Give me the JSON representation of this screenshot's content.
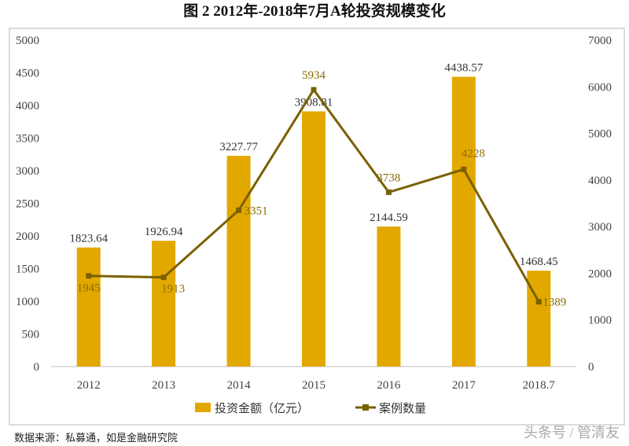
{
  "chart_data": {
    "type": "bar+line",
    "title": "图 2    2012年-2018年7月A轮投资规模变化",
    "categories": [
      "2012",
      "2013",
      "2014",
      "2015",
      "2016",
      "2017",
      "2018.7"
    ],
    "series": [
      {
        "name": "投资金额（亿元）",
        "type": "bar",
        "axis": "left",
        "color": "#E2A800",
        "values": [
          1823.64,
          1926.94,
          3227.77,
          3908.81,
          2144.59,
          4438.57,
          1468.45
        ],
        "labels": [
          "1823.64",
          "1926.94",
          "3227.77",
          "3908.81",
          "2144.59",
          "4438.57",
          "1468.45"
        ]
      },
      {
        "name": "案例数量",
        "type": "line",
        "axis": "right",
        "color": "#7A6000",
        "values": [
          1945,
          1913,
          3351,
          5934,
          3738,
          4228,
          1389
        ],
        "labels": [
          "1945",
          "1913",
          "3351",
          "5934",
          "3738",
          "4228",
          "1389"
        ]
      }
    ],
    "left_axis": {
      "range": [
        0,
        5000
      ],
      "ticks": [
        "0",
        "500",
        "1000",
        "1500",
        "2000",
        "2500",
        "3000",
        "3500",
        "4000",
        "4500",
        "5000"
      ]
    },
    "right_axis": {
      "range": [
        0,
        7000
      ],
      "ticks": [
        "0",
        "1000",
        "2000",
        "3000",
        "4000",
        "5000",
        "6000",
        "7000"
      ]
    },
    "grid": false,
    "legend_placement": "bottom"
  },
  "source": "数据来源：私募通，如是金融研究院",
  "watermark": "头条号 / 管清友"
}
